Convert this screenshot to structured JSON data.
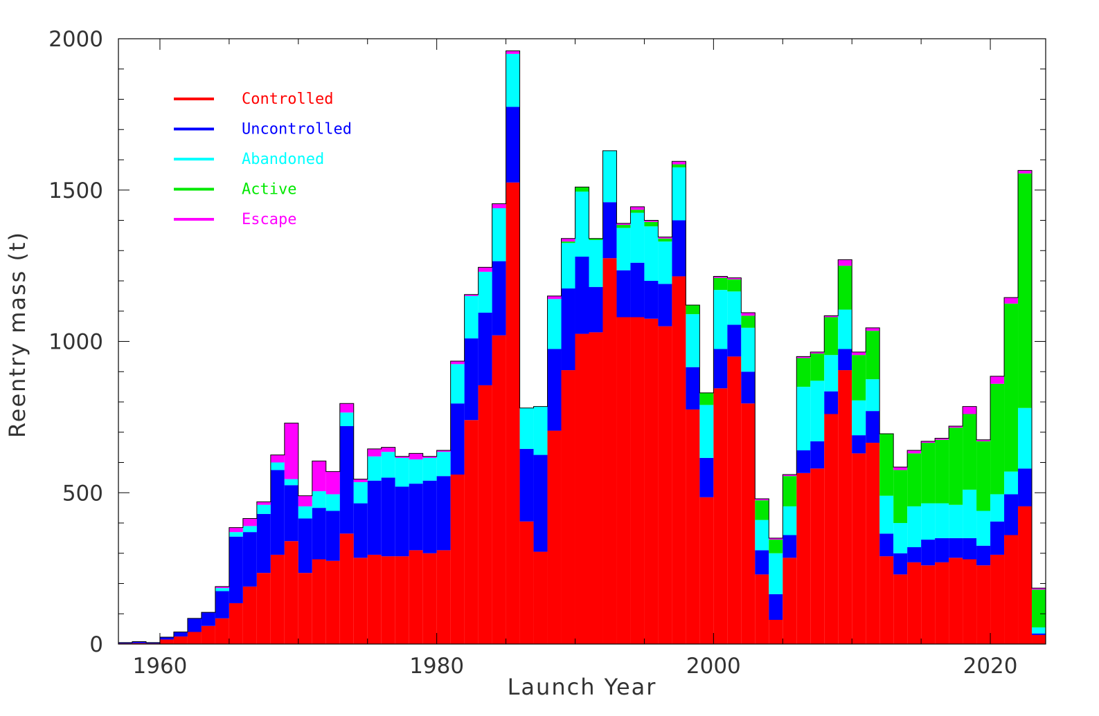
{
  "chart_data": {
    "type": "bar",
    "stacked": true,
    "step_histogram": true,
    "xlabel": "Launch Year",
    "ylabel": "Reentry mass (t)",
    "xlim": [
      1957,
      2024
    ],
    "ylim": [
      0,
      2000
    ],
    "x_ticks": [
      1960,
      1980,
      2000,
      2020
    ],
    "y_ticks": [
      0,
      500,
      1000,
      1500,
      2000
    ],
    "grid": false,
    "legend_position": "top-left",
    "years": [
      1957,
      1958,
      1959,
      1960,
      1961,
      1962,
      1963,
      1964,
      1965,
      1966,
      1967,
      1968,
      1969,
      1970,
      1971,
      1972,
      1973,
      1974,
      1975,
      1976,
      1977,
      1978,
      1979,
      1980,
      1981,
      1982,
      1983,
      1984,
      1985,
      1986,
      1987,
      1988,
      1989,
      1990,
      1991,
      1992,
      1993,
      1994,
      1995,
      1996,
      1997,
      1998,
      1999,
      2000,
      2001,
      2002,
      2003,
      2004,
      2005,
      2006,
      2007,
      2008,
      2009,
      2010,
      2011,
      2012,
      2013,
      2014,
      2015,
      2016,
      2017,
      2018,
      2019,
      2020,
      2021,
      2022,
      2023
    ],
    "series": [
      {
        "name": "Controlled",
        "color": "#ff0000",
        "values": [
          2,
          3,
          2,
          15,
          25,
          40,
          60,
          85,
          135,
          190,
          235,
          295,
          340,
          235,
          280,
          275,
          365,
          285,
          295,
          290,
          290,
          310,
          300,
          310,
          560,
          740,
          855,
          1020,
          1525,
          405,
          305,
          705,
          905,
          1025,
          1030,
          1275,
          1080,
          1080,
          1075,
          1050,
          1215,
          775,
          485,
          845,
          950,
          795,
          230,
          80,
          285,
          565,
          580,
          760,
          905,
          630,
          665,
          290,
          230,
          270,
          260,
          270,
          285,
          280,
          260,
          295,
          360,
          455,
          30
        ]
      },
      {
        "name": "Uncontrolled",
        "color": "#0000ff",
        "values": [
          3,
          5,
          3,
          8,
          15,
          45,
          45,
          90,
          220,
          180,
          195,
          280,
          185,
          180,
          170,
          165,
          355,
          180,
          245,
          260,
          230,
          220,
          240,
          245,
          235,
          270,
          240,
          245,
          250,
          240,
          320,
          270,
          270,
          255,
          150,
          185,
          155,
          180,
          125,
          140,
          185,
          140,
          130,
          130,
          105,
          105,
          80,
          85,
          75,
          75,
          90,
          75,
          70,
          60,
          105,
          75,
          70,
          50,
          85,
          80,
          65,
          70,
          65,
          110,
          135,
          125,
          5
        ]
      },
      {
        "name": "Abandoned",
        "color": "#00ffff",
        "values": [
          0,
          0,
          0,
          0,
          0,
          0,
          0,
          10,
          15,
          20,
          30,
          25,
          20,
          40,
          55,
          55,
          45,
          70,
          80,
          85,
          95,
          80,
          75,
          80,
          130,
          140,
          135,
          175,
          175,
          135,
          160,
          165,
          150,
          215,
          155,
          170,
          140,
          165,
          180,
          140,
          175,
          175,
          175,
          195,
          110,
          145,
          100,
          135,
          95,
          210,
          200,
          120,
          130,
          115,
          105,
          125,
          100,
          135,
          120,
          115,
          110,
          160,
          115,
          90,
          75,
          200,
          20
        ]
      },
      {
        "name": "Active",
        "color": "#00e800",
        "values": [
          0,
          0,
          0,
          0,
          0,
          0,
          0,
          0,
          0,
          0,
          0,
          0,
          0,
          0,
          0,
          0,
          0,
          0,
          0,
          0,
          0,
          0,
          0,
          0,
          0,
          0,
          0,
          0,
          0,
          0,
          0,
          0,
          5,
          15,
          5,
          0,
          10,
          10,
          15,
          10,
          10,
          30,
          40,
          40,
          40,
          40,
          65,
          45,
          100,
          95,
          90,
          125,
          145,
          150,
          160,
          205,
          175,
          175,
          200,
          210,
          255,
          250,
          230,
          365,
          555,
          775,
          125
        ]
      },
      {
        "name": "Escape",
        "color": "#ff00ff",
        "values": [
          0,
          0,
          0,
          0,
          0,
          0,
          0,
          5,
          15,
          25,
          10,
          25,
          185,
          35,
          100,
          75,
          30,
          10,
          25,
          15,
          5,
          20,
          5,
          5,
          10,
          5,
          15,
          15,
          10,
          0,
          0,
          10,
          10,
          0,
          0,
          0,
          5,
          10,
          5,
          5,
          10,
          0,
          0,
          5,
          5,
          10,
          5,
          5,
          5,
          5,
          5,
          5,
          20,
          10,
          10,
          0,
          10,
          10,
          5,
          5,
          5,
          25,
          5,
          25,
          20,
          10,
          5
        ]
      }
    ]
  }
}
